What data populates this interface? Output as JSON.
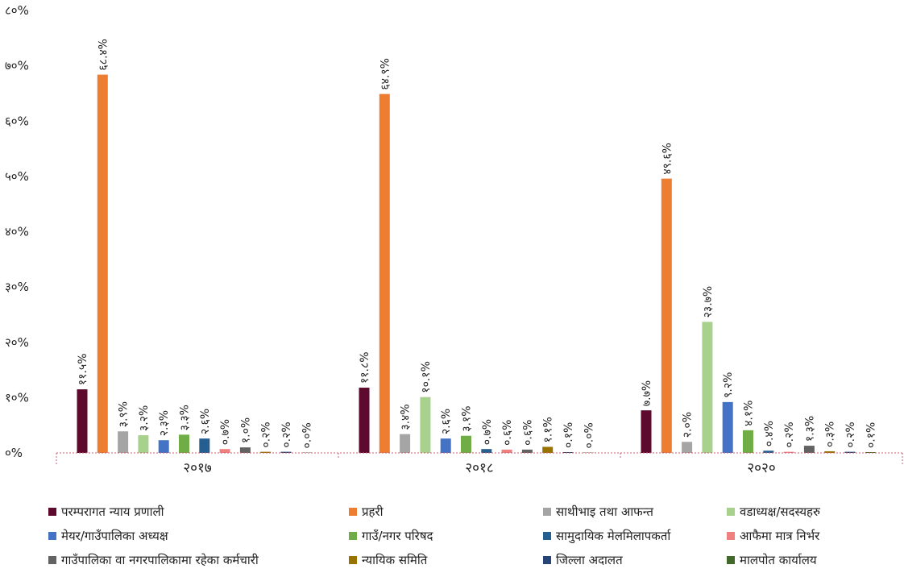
{
  "chart_data": {
    "type": "bar",
    "categories": [
      "२०१७",
      "२०१८",
      "२०२०"
    ],
    "ylim": [
      0,
      80
    ],
    "yticks": [
      {
        "value": 0,
        "label": "०%"
      },
      {
        "value": 10,
        "label": "१०%"
      },
      {
        "value": 20,
        "label": "२०%"
      },
      {
        "value": 30,
        "label": "३०%"
      },
      {
        "value": 40,
        "label": "४०%"
      },
      {
        "value": 50,
        "label": "५०%"
      },
      {
        "value": 60,
        "label": "६०%"
      },
      {
        "value": 70,
        "label": "७०%"
      },
      {
        "value": 80,
        "label": "८०%"
      }
    ],
    "grid": false,
    "legend_position": "bottom",
    "series": [
      {
        "name": "परम्परागत न्याय प्रणाली",
        "color": "#5e0a2e",
        "values": [
          11.5,
          11.8,
          7.7
        ],
        "labels": [
          "११.५%",
          "११.८%",
          "७.७%"
        ]
      },
      {
        "name": "प्रहरी",
        "color": "#ed7d31",
        "values": [
          68.4,
          64.9,
          49.6
        ],
        "labels": [
          "६८.४%",
          "६४.९%",
          "४९.६%"
        ]
      },
      {
        "name": "साथीभाइ तथा आफन्त",
        "color": "#a5a5a5",
        "values": [
          3.9,
          3.4,
          2.0
        ],
        "labels": [
          "३.९%",
          "३.४%",
          "२.०%"
        ]
      },
      {
        "name": "वडाध्यक्ष/सदस्यहरु",
        "color": "#a9d18e",
        "values": [
          3.2,
          10.1,
          23.7
        ],
        "labels": [
          "३.२%",
          "१०.१%",
          "२३.७%"
        ]
      },
      {
        "name": "मेयर/गाउँपालिका अध्यक्ष",
        "color": "#4472c4",
        "values": [
          2.3,
          2.6,
          9.2
        ],
        "labels": [
          "२.३%",
          "२.६%",
          "९.२%"
        ]
      },
      {
        "name": "गाउँ/नगर परिषद",
        "color": "#70ad47",
        "values": [
          3.3,
          3.1,
          4.1
        ],
        "labels": [
          "३.३%",
          "३.१%",
          "४.१%"
        ]
      },
      {
        "name": "सामुदायिक मेलमिलापकर्ता",
        "color": "#255e91",
        "values": [
          2.6,
          0.7,
          0.4
        ],
        "labels": [
          "२.६%",
          "०.७%",
          "०.४%"
        ]
      },
      {
        "name": "आफैमा मात्र निर्भर",
        "color": "#f08080",
        "values": [
          0.7,
          0.6,
          0.2
        ],
        "labels": [
          "०.७%",
          "०.६%",
          "०.२%"
        ]
      },
      {
        "name": "गाउँपालिका वा नगरपालिकामा रहेका कर्मचारी",
        "color": "#636363",
        "values": [
          1.0,
          0.6,
          1.3
        ],
        "labels": [
          "१.०%",
          "०.६%",
          "१.३%"
        ]
      },
      {
        "name": "न्यायिक समिति",
        "color": "#997300",
        "values": [
          0.2,
          1.1,
          0.3
        ],
        "labels": [
          "०.२%",
          "१.१%",
          "०.३%"
        ]
      },
      {
        "name": "जिल्ला अदालत",
        "color": "#264478",
        "values": [
          0.2,
          0.1,
          0.2
        ],
        "labels": [
          "०.२%",
          "०.१%",
          "०.२%"
        ]
      },
      {
        "name": "मालपोत कार्यालय",
        "color": "#43682b",
        "values": [
          0.0,
          0.0,
          0.1
        ],
        "labels": [
          "०.०%",
          "०.०%",
          "०.१%"
        ]
      }
    ]
  }
}
